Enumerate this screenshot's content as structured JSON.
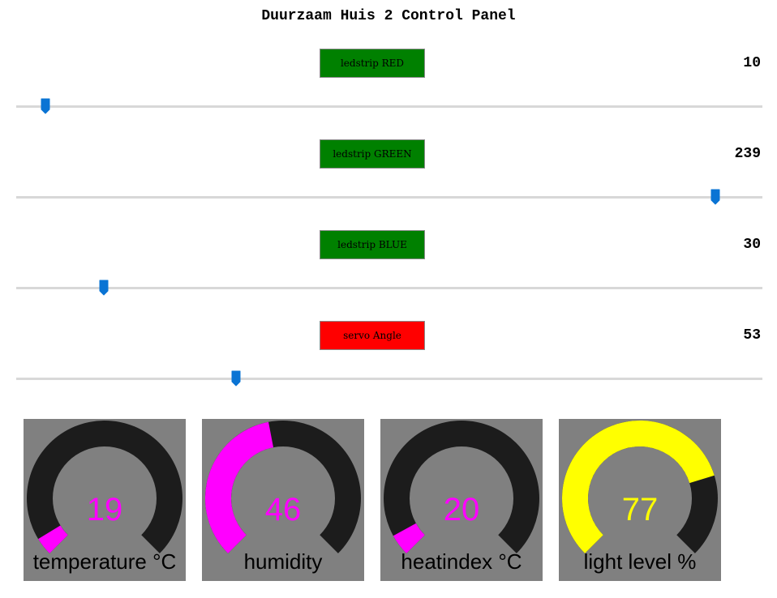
{
  "page": {
    "title": "Duurzaam Huis 2 Control Panel"
  },
  "controls": [
    {
      "label": "ledstrip RED",
      "value": "10",
      "button_color": "#008000",
      "slider_fraction": 0.0392
    },
    {
      "label": "ledstrip GREEN",
      "value": "239",
      "button_color": "#008000",
      "slider_fraction": 0.937
    },
    {
      "label": "ledstrip BLUE",
      "value": "30",
      "button_color": "#008000",
      "slider_fraction": 0.1176
    },
    {
      "label": "servo Angle",
      "value": "53",
      "button_color": "#ff0000",
      "slider_fraction": 0.2944
    }
  ],
  "slider_thumb_color": "#0a74d4",
  "gauges": [
    {
      "label": "temperature °C",
      "value": "19",
      "fraction": 0.05,
      "color": "#ff00ff"
    },
    {
      "label": "humidity",
      "value": "46",
      "fraction": 0.46,
      "color": "#ff00ff"
    },
    {
      "label": "heatindex °C",
      "value": "20",
      "fraction": 0.06,
      "color": "#ff00ff"
    },
    {
      "label": "light level %",
      "value": "77",
      "fraction": 0.77,
      "color": "#ffff00"
    }
  ],
  "gauge_track_color": "#1c1c1c",
  "gauge_background_color": "#808080"
}
